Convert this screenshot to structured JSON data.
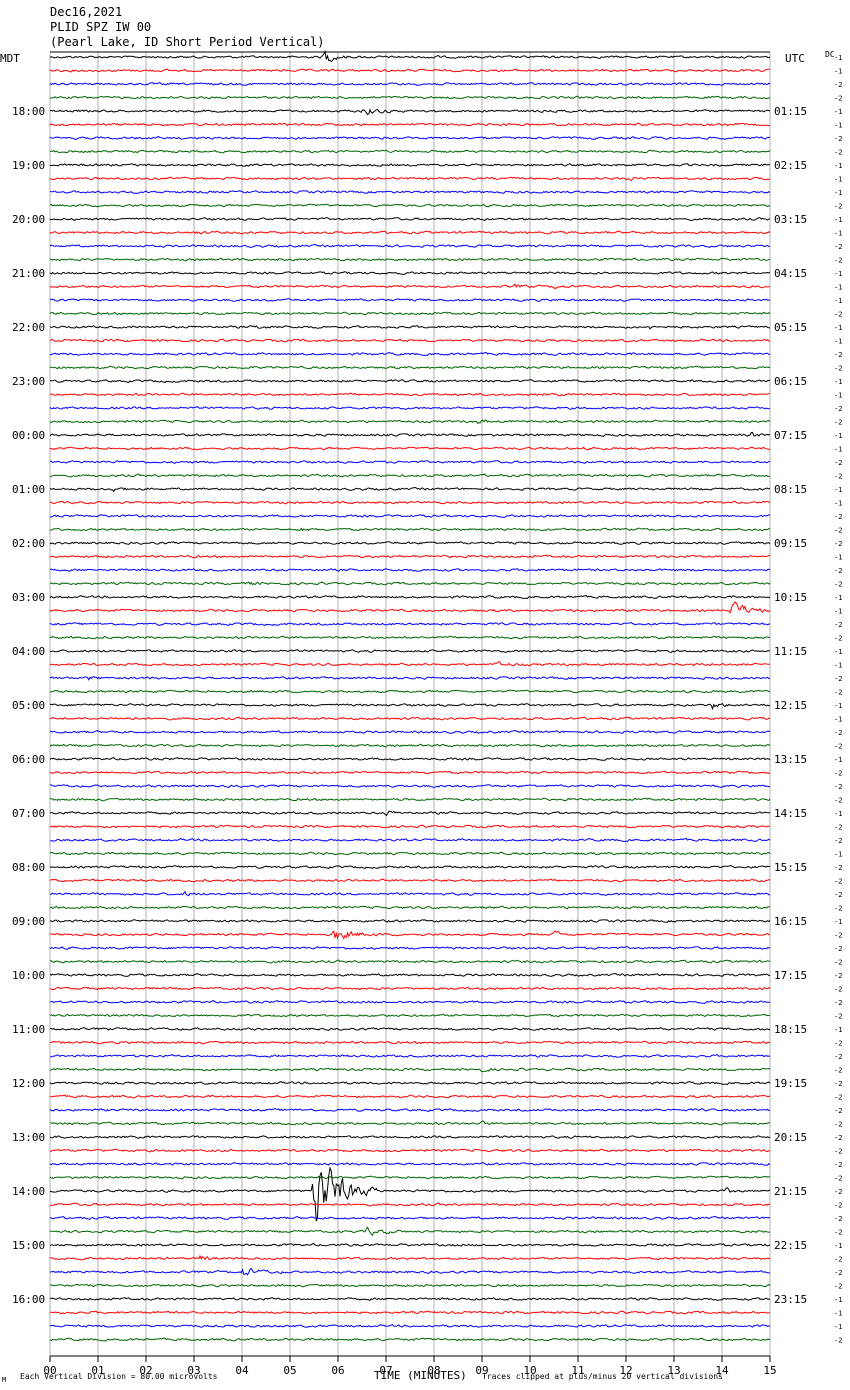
{
  "header": {
    "date": "Dec16,2021",
    "station": "PLID SPZ IW 00",
    "location": "(Pearl Lake, ID Short Period Vertical)"
  },
  "left_timezone": "MDT",
  "right_timezone": "UTC",
  "dc_label": "DC",
  "footer": {
    "marker": "M",
    "scale_note": "Each Vertical Division =   80.00 microvolts",
    "x_title": "TIME (MINUTES)",
    "clip_note": "Traces clipped at plus/minus 20 vertical divisions"
  },
  "colors": {
    "trace_cycle": [
      "#000000",
      "#ff0000",
      "#0000ff",
      "#006400"
    ],
    "grid": "#b0b0b0"
  },
  "chart_data": {
    "type": "line",
    "subtype": "helicorder",
    "x": {
      "label": "TIME (MINUTES)",
      "min": 0,
      "max": 15,
      "ticks": [
        "00",
        "01",
        "02",
        "03",
        "04",
        "05",
        "06",
        "07",
        "08",
        "09",
        "10",
        "11",
        "12",
        "13",
        "14",
        "15"
      ]
    },
    "rows_per_hour": 4,
    "row_count": 96,
    "left_hour_labels": [
      "18:00",
      "19:00",
      "20:00",
      "21:00",
      "22:00",
      "23:00",
      "00:00",
      "01:00",
      "02:00",
      "03:00",
      "04:00",
      "05:00",
      "06:00",
      "07:00",
      "08:00",
      "09:00",
      "10:00",
      "11:00",
      "12:00",
      "13:00",
      "14:00",
      "15:00",
      "16:00"
    ],
    "right_hour_labels": [
      "01:15",
      "02:15",
      "03:15",
      "04:15",
      "05:15",
      "06:15",
      "07:15",
      "08:15",
      "09:15",
      "10:15",
      "11:15",
      "12:15",
      "13:15",
      "14:15",
      "15:15",
      "16:15",
      "17:15",
      "18:15",
      "19:15",
      "20:15",
      "21:15",
      "22:15",
      "23:15"
    ],
    "dc_offsets": [
      -1,
      -1,
      -2,
      -2,
      -1,
      -1,
      -2,
      -2,
      -1,
      -1,
      -1,
      -2,
      -1,
      -1,
      -2,
      -2,
      -1,
      -1,
      -1,
      -2,
      -1,
      -1,
      -2,
      -2,
      -1,
      -1,
      -2,
      -2,
      -1,
      -1,
      -2,
      -2,
      -1,
      -1,
      -2,
      -2,
      -2,
      -1,
      -2,
      -2,
      -1,
      -1,
      -2,
      -2,
      -1,
      -1,
      -2,
      -2,
      -1,
      -1,
      -2,
      -2,
      -1,
      -2,
      -2,
      -2,
      -1,
      -2,
      -2,
      -1,
      -2,
      -2,
      -2,
      -2,
      -1,
      -2,
      -2,
      -2,
      -2,
      -2,
      -2,
      -2,
      -1,
      -2,
      -2,
      -2,
      -2,
      -2,
      -2,
      -2,
      -2,
      -2,
      -2,
      -2,
      -2,
      -2,
      -2,
      -2,
      -1,
      -2,
      -2,
      -2,
      -1,
      -1,
      -1,
      -2
    ],
    "events": [
      {
        "row": 0,
        "minute": 5.7,
        "amplitude": 3.5,
        "duration": 0.5
      },
      {
        "row": 0,
        "minute": 7.9,
        "amplitude": 0.8,
        "duration": 0.3
      },
      {
        "row": 4,
        "minute": 6.5,
        "amplitude": 1.6,
        "duration": 0.8
      },
      {
        "row": 9,
        "minute": 12.0,
        "amplitude": 0.8,
        "duration": 0.3
      },
      {
        "row": 13,
        "minute": 3.0,
        "amplitude": 0.8,
        "duration": 0.3
      },
      {
        "row": 17,
        "minute": 9.7,
        "amplitude": 0.7,
        "duration": 0.4
      },
      {
        "row": 17,
        "minute": 10.5,
        "amplitude": 0.8,
        "duration": 0.4
      },
      {
        "row": 20,
        "minute": 4.3,
        "amplitude": 0.6,
        "duration": 0.5
      },
      {
        "row": 20,
        "minute": 12.5,
        "amplitude": 0.6,
        "duration": 0.4
      },
      {
        "row": 28,
        "minute": 14.6,
        "amplitude": 1.2,
        "duration": 0.3
      },
      {
        "row": 27,
        "minute": 8.9,
        "amplitude": 0.8,
        "duration": 0.4
      },
      {
        "row": 32,
        "minute": 1.3,
        "amplitude": 1.0,
        "duration": 0.4
      },
      {
        "row": 35,
        "minute": 5.2,
        "amplitude": 0.6,
        "duration": 0.3
      },
      {
        "row": 39,
        "minute": 4.1,
        "amplitude": 0.8,
        "duration": 0.4
      },
      {
        "row": 41,
        "minute": 14.2,
        "amplitude": 4.0,
        "duration": 0.8
      },
      {
        "row": 45,
        "minute": 9.3,
        "amplitude": 1.1,
        "duration": 0.6
      },
      {
        "row": 46,
        "minute": 0.8,
        "amplitude": 0.8,
        "duration": 0.3
      },
      {
        "row": 48,
        "minute": 13.8,
        "amplitude": 1.4,
        "duration": 0.5
      },
      {
        "row": 49,
        "minute": 1.6,
        "amplitude": 0.8,
        "duration": 0.3
      },
      {
        "row": 56,
        "minute": 7.0,
        "amplitude": 0.9,
        "duration": 0.5
      },
      {
        "row": 62,
        "minute": 2.8,
        "amplitude": 1.0,
        "duration": 0.3
      },
      {
        "row": 65,
        "minute": 5.9,
        "amplitude": 2.6,
        "duration": 1.0
      },
      {
        "row": 65,
        "minute": 10.5,
        "amplitude": 1.2,
        "duration": 0.4
      },
      {
        "row": 75,
        "minute": 9.0,
        "amplitude": 0.7,
        "duration": 0.3
      },
      {
        "row": 79,
        "minute": 9.0,
        "amplitude": 0.6,
        "duration": 0.3
      },
      {
        "row": 84,
        "minute": 5.5,
        "amplitude": 18.0,
        "duration": 1.3
      },
      {
        "row": 84,
        "minute": 14.1,
        "amplitude": 0.8,
        "duration": 0.4
      },
      {
        "row": 87,
        "minute": 6.6,
        "amplitude": 1.5,
        "duration": 0.8
      },
      {
        "row": 89,
        "minute": 3.1,
        "amplitude": 1.4,
        "duration": 0.4
      },
      {
        "row": 90,
        "minute": 4.0,
        "amplitude": 1.8,
        "duration": 0.9
      }
    ]
  }
}
